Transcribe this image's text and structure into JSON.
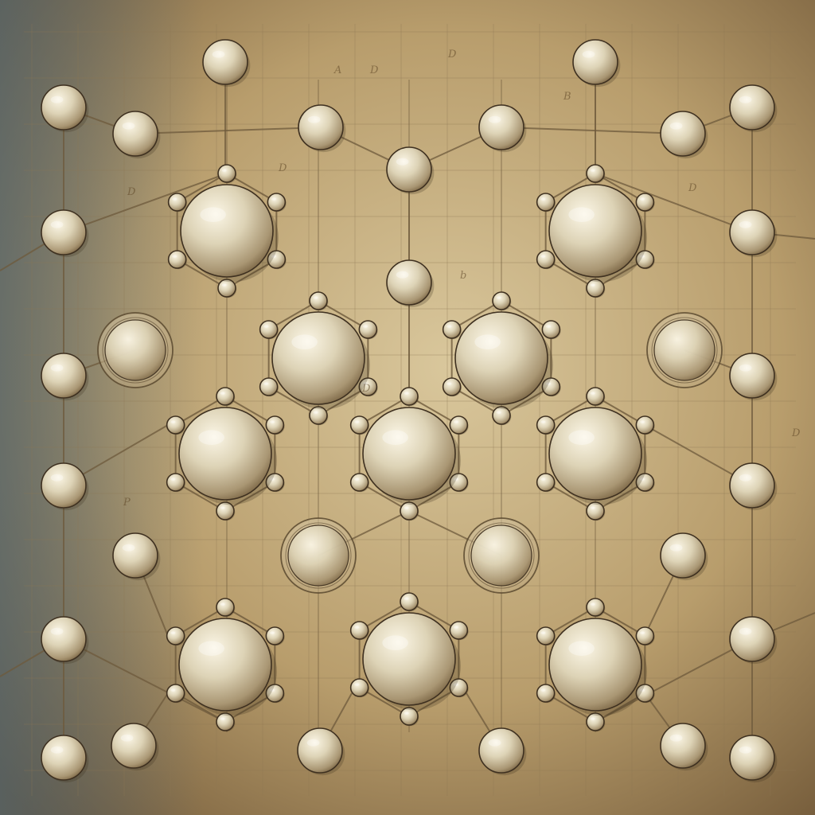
{
  "image": {
    "subject": "",
    "palette": {
      "paper_light": "#d9c79c",
      "paper_mid": "#b89d6c",
      "paper_dark": "#6f5636",
      "vignette_blue": "#4d6573",
      "line": "#6e5a3c",
      "grid": "#8d7753",
      "sphere_highlight": "#fbf6e6",
      "sphere_mid": "#ddd3b6",
      "sphere_shadow": "#7f6a49"
    }
  },
  "annotations": [
    "A",
    "D",
    "D",
    "B",
    "D",
    "b",
    "D",
    "D",
    "D",
    "D",
    "P"
  ]
}
